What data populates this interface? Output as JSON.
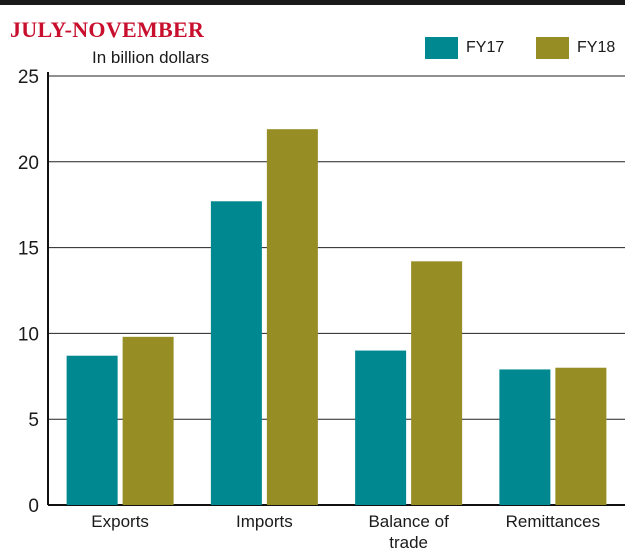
{
  "header": {
    "title": "JULY-NOVEMBER",
    "subtitle": "In billion dollars"
  },
  "colors": {
    "FY17": "#008891",
    "FY18": "#968d24",
    "title": "#c8102e",
    "grid": "#222222"
  },
  "chart_data": {
    "type": "bar",
    "title": "JULY-NOVEMBER",
    "ylabel": "In billion dollars",
    "categories": [
      "Exports",
      "Imports",
      "Balance of trade",
      "Remittances"
    ],
    "category_lines": [
      [
        "Exports"
      ],
      [
        "Imports"
      ],
      [
        "Balance of",
        "trade"
      ],
      [
        "Remittances"
      ]
    ],
    "series": [
      {
        "name": "FY17",
        "values": [
          8.7,
          17.7,
          9.0,
          7.9
        ]
      },
      {
        "name": "FY18",
        "values": [
          9.8,
          21.9,
          14.2,
          8.0
        ]
      }
    ],
    "ylim": [
      0,
      25
    ],
    "yticks": [
      0,
      5,
      10,
      15,
      20,
      25
    ],
    "grid": true,
    "legend_position": "top-right"
  }
}
